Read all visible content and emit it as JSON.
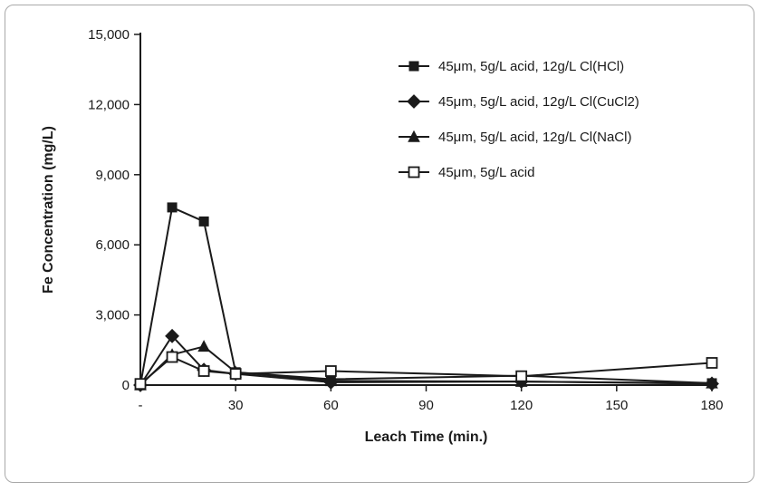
{
  "figure": {
    "background": "#ffffff",
    "border_color": "#a9a9a9",
    "line_color": "#1a1a1a"
  },
  "chart_data": {
    "type": "line",
    "title": "",
    "xlabel": "Leach Time (min.)",
    "ylabel": "Fe Concentration (mg/L)",
    "xlim": [
      0,
      180
    ],
    "ylim": [
      0,
      15000
    ],
    "grid": false,
    "legend_position": "upper-right-inside",
    "x_ticks": [
      0,
      30,
      60,
      90,
      120,
      150,
      180
    ],
    "x_tick_labels": [
      "-",
      "30",
      "60",
      "90",
      "120",
      "150",
      "180"
    ],
    "y_ticks": [
      0,
      3000,
      6000,
      9000,
      12000,
      15000
    ],
    "y_tick_labels": [
      "0",
      "3,000",
      "6,000",
      "9,000",
      "12,000",
      "15,000"
    ],
    "series": [
      {
        "name": "45μm, 5g/L acid, 12g/L Cl(HCl)",
        "marker": "filled-square",
        "color": "#1a1a1a",
        "x": [
          0,
          10,
          20,
          30,
          60,
          120,
          180
        ],
        "y": [
          0,
          7600,
          7000,
          550,
          250,
          400,
          80
        ]
      },
      {
        "name": "45μm, 5g/L acid, 12g/L Cl(CuCl2)",
        "marker": "filled-diamond",
        "color": "#1a1a1a",
        "x": [
          0,
          10,
          20,
          30,
          60,
          120,
          180
        ],
        "y": [
          0,
          2100,
          650,
          480,
          120,
          150,
          60
        ]
      },
      {
        "name": "45μm, 5g/L acid, 12g/L Cl(NaCl)",
        "marker": "filled-triangle",
        "color": "#1a1a1a",
        "x": [
          0,
          10,
          20,
          30,
          60,
          120,
          180
        ],
        "y": [
          0,
          1300,
          1650,
          550,
          180,
          150,
          80
        ]
      },
      {
        "name": "45μm, 5g/L acid",
        "marker": "open-square",
        "color": "#1a1a1a",
        "x": [
          0,
          10,
          20,
          30,
          60,
          120,
          180
        ],
        "y": [
          50,
          1200,
          600,
          480,
          600,
          380,
          950
        ]
      }
    ]
  }
}
